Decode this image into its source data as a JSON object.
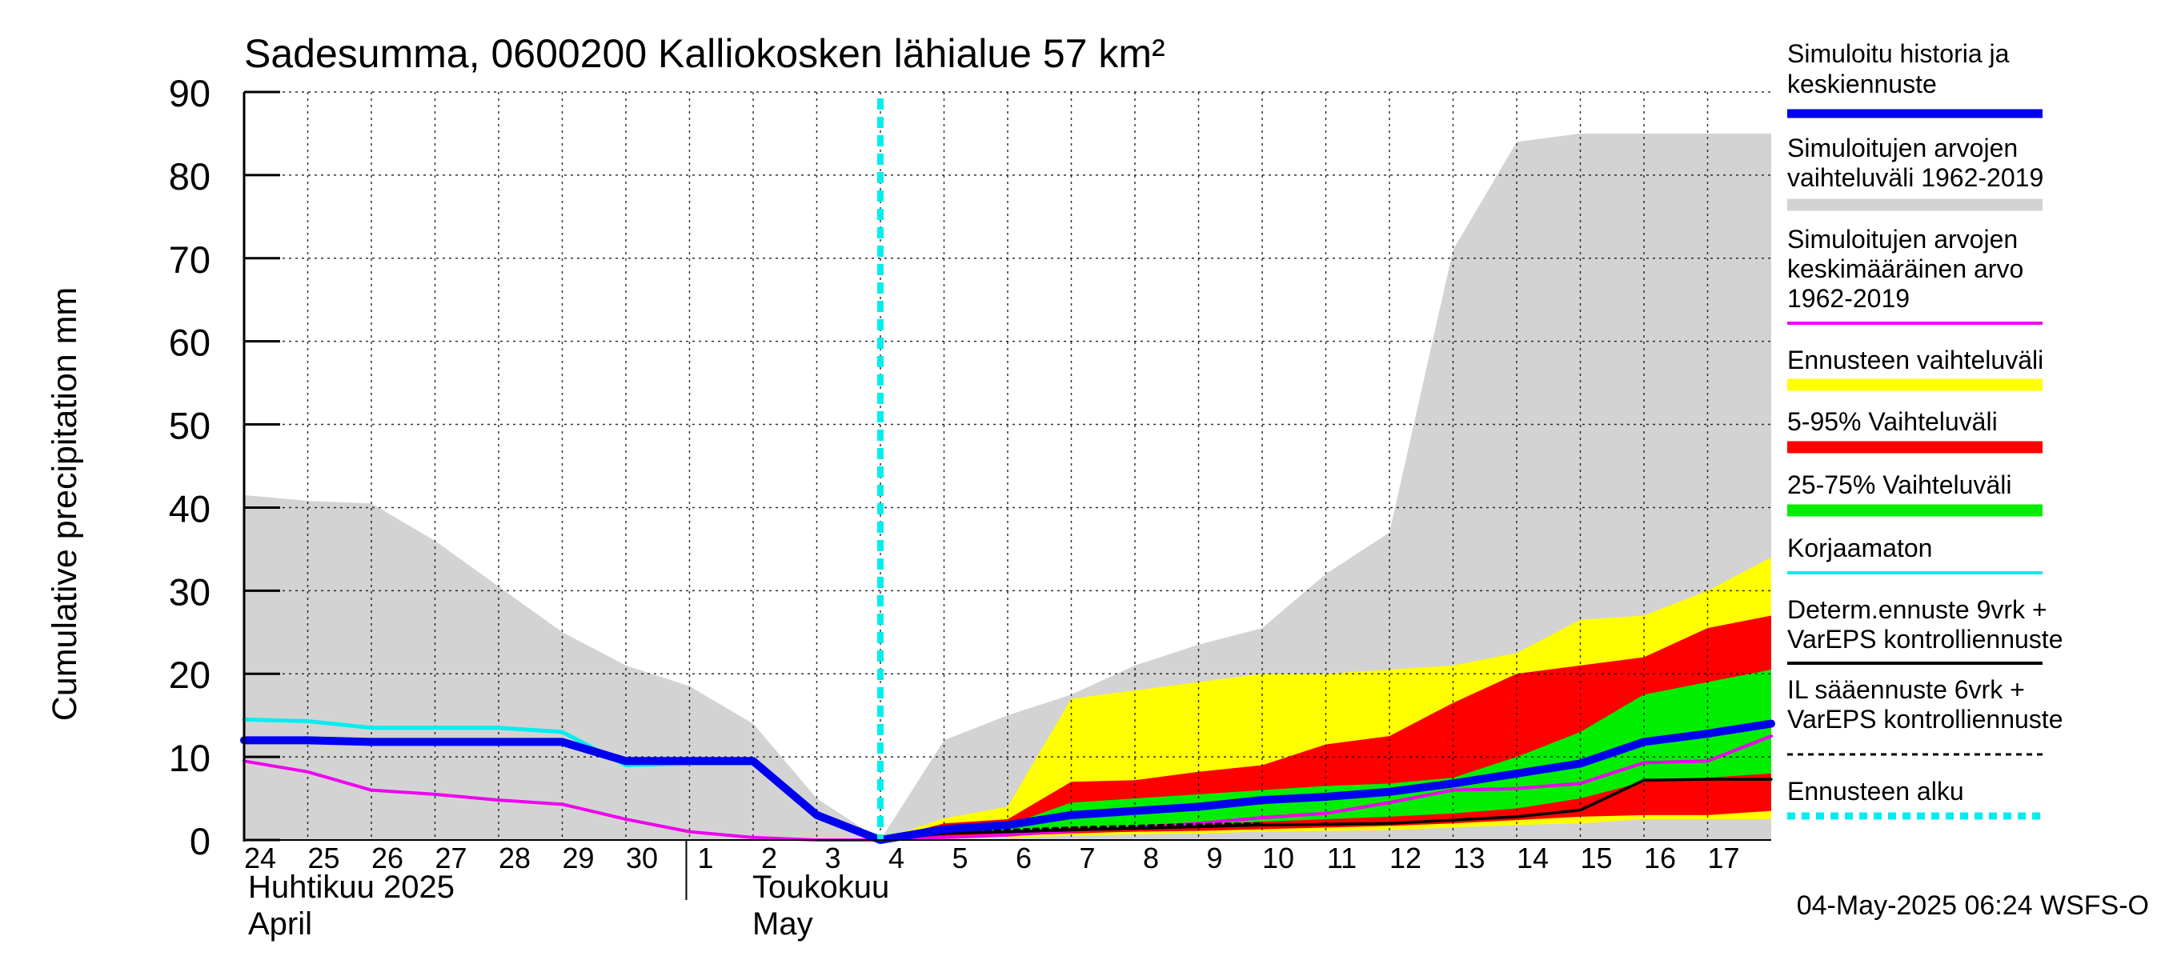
{
  "chart_data": {
    "type": "area",
    "title": "Sadesumma, 0600200 Kalliokosken lähialue 57 km²",
    "ylabel": "Cumulative precipitation   mm",
    "ylim": [
      0,
      90
    ],
    "yticks": [
      "0",
      "10",
      "20",
      "30",
      "40",
      "50",
      "60",
      "70",
      "80",
      "90"
    ],
    "xlim": [
      0,
      24
    ],
    "x_tick_labels": [
      "24",
      "25",
      "26",
      "27",
      "28",
      "29",
      "30",
      "1",
      "2",
      "3",
      "4",
      "5",
      "6",
      "7",
      "8",
      "9",
      "10",
      "11",
      "12",
      "13",
      "14",
      "15",
      "16",
      "17"
    ],
    "month_labels": {
      "april_fi": "Huhtikuu  2025",
      "april_en": "April",
      "may_fi": "Toukokuu",
      "may_en": "May"
    },
    "forecast_start_x": 10,
    "timestamp": "04-May-2025 06:24 WSFS-O",
    "grid": true,
    "legend_position": "right",
    "legend": [
      {
        "key": "sim",
        "label_lines": [
          "Simuloitu historia ja",
          "keskiennuste"
        ],
        "color": "#0000ee",
        "style": "thick-line"
      },
      {
        "key": "hist_range",
        "label_lines": [
          "Simuloitujen arvojen",
          "vaihteluväli 1962-2019"
        ],
        "color": "#d3d3d3",
        "style": "band"
      },
      {
        "key": "hist_mean",
        "label_lines": [
          "Simuloitujen arvojen",
          "keskimääräinen arvo",
          "   1962-2019"
        ],
        "color": "#ee00ee",
        "style": "line"
      },
      {
        "key": "ens_range",
        "label_lines": [
          "Ennusteen vaihteluväli"
        ],
        "color": "#ffff00",
        "style": "band"
      },
      {
        "key": "p5_95",
        "label_lines": [
          "5-95% Vaihteluväli"
        ],
        "color": "#ff0000",
        "style": "band"
      },
      {
        "key": "p25_75",
        "label_lines": [
          "25-75% Vaihteluväli"
        ],
        "color": "#00ee00",
        "style": "band"
      },
      {
        "key": "uncorr",
        "label_lines": [
          "Korjaamaton"
        ],
        "color": "#00eeee",
        "style": "line"
      },
      {
        "key": "determ",
        "label_lines": [
          "Determ.ennuste 9vrk  +",
          "VarEPS kontrolliennuste"
        ],
        "color": "#000000",
        "style": "line"
      },
      {
        "key": "il",
        "label_lines": [
          "IL sääennuste 6vrk  +",
          "  VarEPS kontrolliennuste"
        ],
        "color": "#000000",
        "style": "dashed"
      },
      {
        "key": "start",
        "label_lines": [
          "Ennusteen alku"
        ],
        "color": "#00eeee",
        "style": "dotted"
      }
    ],
    "series": {
      "hist_range": {
        "x": [
          0,
          1,
          2,
          3,
          4,
          5,
          6,
          7,
          8,
          9,
          10,
          11,
          12,
          13,
          14,
          15,
          16,
          17,
          18,
          19,
          20,
          21,
          22,
          23,
          24
        ],
        "upper": [
          41.5,
          40.8,
          40.5,
          36,
          30.5,
          25,
          21,
          18.5,
          14,
          5,
          0,
          12,
          15,
          17.5,
          21,
          23.5,
          25.5,
          32,
          37,
          71,
          84,
          85,
          85,
          85,
          85
        ],
        "lower": [
          0,
          0,
          0,
          0,
          0,
          0,
          0,
          0,
          0,
          0,
          0,
          0,
          0,
          0,
          0,
          0,
          0,
          0,
          0,
          0,
          0,
          0,
          0,
          0,
          0
        ]
      },
      "ens_range": {
        "x": [
          10,
          11,
          12,
          13,
          14,
          15,
          16,
          17,
          18,
          19,
          20,
          21,
          22,
          23,
          24
        ],
        "upper": [
          0,
          2.6,
          4,
          17,
          18,
          19,
          20,
          20,
          20.5,
          21,
          22.5,
          26.5,
          27,
          30,
          34
        ],
        "lower": [
          0,
          0.2,
          0.3,
          0.5,
          0.7,
          0.8,
          1,
          1.1,
          1.2,
          1.5,
          1.8,
          2,
          2.5,
          2.5,
          2.5
        ]
      },
      "p5_95": {
        "x": [
          10,
          11,
          12,
          13,
          14,
          15,
          16,
          17,
          18,
          19,
          20,
          21,
          22,
          23,
          24
        ],
        "upper": [
          0,
          2,
          2.5,
          7,
          7.2,
          8.2,
          9,
          11.5,
          12.5,
          16.5,
          20,
          21,
          22,
          25.5,
          27
        ],
        "lower": [
          0,
          0.4,
          0.5,
          0.8,
          1,
          1.1,
          1.3,
          1.5,
          1.7,
          2,
          2.4,
          2.8,
          3,
          3,
          3.5
        ]
      },
      "p25_75": {
        "x": [
          10,
          11,
          12,
          13,
          14,
          15,
          16,
          17,
          18,
          19,
          20,
          21,
          22,
          23,
          24
        ],
        "upper": [
          0,
          1.5,
          1.8,
          4.5,
          5,
          5.5,
          6,
          6.5,
          6.8,
          7.5,
          10,
          13,
          17.5,
          19,
          20.5
        ],
        "lower": [
          0,
          0.8,
          1,
          1.5,
          1.6,
          1.8,
          2.2,
          2.5,
          2.8,
          3.2,
          3.8,
          5,
          7,
          7.5,
          8
        ]
      },
      "sim": {
        "x": [
          0,
          1,
          2,
          3,
          4,
          5,
          6,
          7,
          8,
          9,
          10,
          11,
          12,
          13,
          14,
          15,
          16,
          17,
          18,
          19,
          20,
          21,
          22,
          23,
          24
        ],
        "y": [
          12,
          12,
          11.8,
          11.8,
          11.8,
          11.8,
          9.5,
          9.5,
          9.5,
          3,
          0,
          1.3,
          1.8,
          3,
          3.5,
          4,
          4.8,
          5.2,
          5.8,
          6.8,
          8,
          9.2,
          11.8,
          12.8,
          14
        ]
      },
      "uncorr": {
        "x": [
          0,
          1,
          2,
          3,
          4,
          5,
          6,
          7,
          8,
          9,
          10
        ],
        "y": [
          14.5,
          14.3,
          13.5,
          13.5,
          13.5,
          13,
          9,
          9.2,
          9.2,
          2.8,
          0
        ]
      },
      "hist_mean": {
        "x": [
          0,
          1,
          2,
          3,
          4,
          5,
          6,
          7,
          8,
          9,
          10,
          11,
          12,
          13,
          14,
          15,
          16,
          17,
          18,
          19,
          20,
          21,
          22,
          23,
          24
        ],
        "y": [
          9.5,
          8.2,
          6,
          5.5,
          4.8,
          4.3,
          2.5,
          1,
          0.3,
          0,
          0,
          0.3,
          0.6,
          1.1,
          1.5,
          2,
          2.7,
          3.2,
          4.5,
          6,
          6.2,
          6.8,
          9.3,
          9.5,
          12.5
        ]
      },
      "determ": {
        "x": [
          10,
          11,
          12,
          13,
          14,
          15,
          16,
          17,
          18,
          19,
          20,
          21,
          22,
          23,
          24
        ],
        "y": [
          0,
          0.8,
          1,
          1.2,
          1.4,
          1.6,
          1.8,
          1.9,
          2,
          2.4,
          2.8,
          3.6,
          7.2,
          7.3,
          7.3
        ]
      },
      "il": {
        "x": [
          10,
          11,
          12,
          13,
          14,
          15,
          16
        ],
        "y": [
          0,
          1,
          1.2,
          1.5,
          1.7,
          1.9,
          2
        ]
      }
    }
  }
}
